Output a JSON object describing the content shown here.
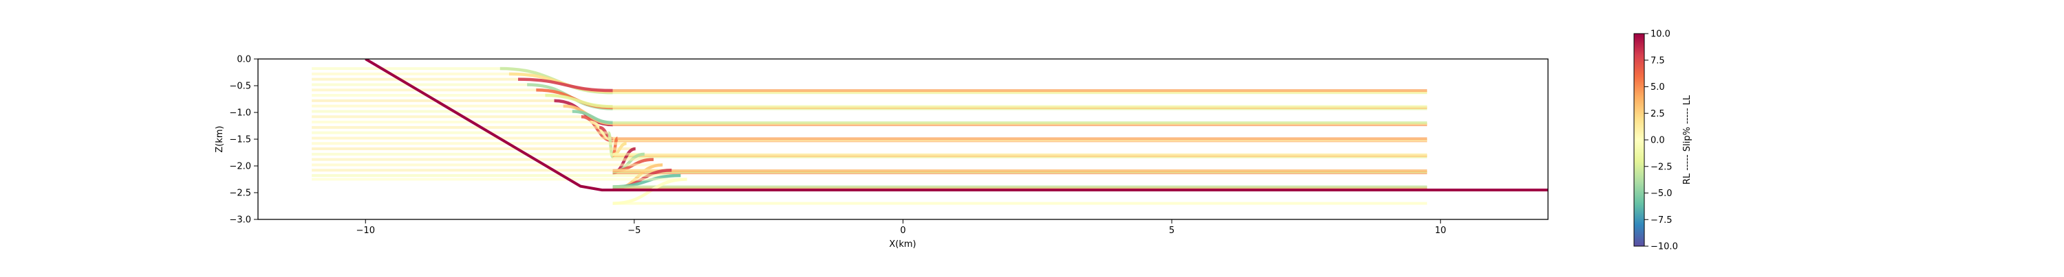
{
  "chart_data": {
    "type": "line",
    "xlabel": "X(km)",
    "ylabel": "Z(km)",
    "xlim": [
      -12,
      12
    ],
    "ylim": [
      -3.0,
      0.0
    ],
    "xticks": [
      -10,
      -5,
      0,
      5,
      10
    ],
    "xtick_labels": [
      "−10",
      "−5",
      "0",
      "5",
      "10"
    ],
    "yticks": [
      0.0,
      -0.5,
      -1.0,
      -1.5,
      -2.0,
      -2.5,
      -3.0
    ],
    "ytick_labels": [
      "0.0",
      "−0.5",
      "−1.0",
      "−1.5",
      "−2.0",
      "−2.5",
      "−3.0"
    ],
    "grid": false,
    "fault": {
      "x": [
        -10.0,
        -6.0,
        -5.6,
        12.0
      ],
      "y": [
        0.0,
        -2.38,
        -2.45,
        -2.45
      ],
      "color": "#9e0142"
    },
    "strata": {
      "x_start": -11.0,
      "x_end": 9.75,
      "depths": [
        -0.18,
        -0.28,
        -0.38,
        -0.48,
        -0.58,
        -0.68,
        -0.78,
        -0.88,
        -0.98,
        -1.08,
        -1.18,
        -1.28,
        -1.38,
        -1.48,
        -1.58,
        -1.68,
        -1.78,
        -1.88,
        -1.98,
        -2.08,
        -2.18,
        -2.25
      ],
      "slip_percent": [
        -3,
        2,
        8,
        -4,
        6,
        -2,
        9,
        3,
        -5,
        7,
        1,
        8,
        -3,
        6,
        2,
        9,
        -4,
        7,
        3,
        8,
        -6,
        0
      ]
    },
    "colorbar": {
      "label": "RL ----- Slip% ----- LL",
      "range": [
        -10.0,
        10.0
      ],
      "ticks": [
        10.0,
        7.5,
        5.0,
        2.5,
        0.0,
        -2.5,
        -5.0,
        -7.5,
        -10.0
      ],
      "tick_labels": [
        "10.0",
        "7.5",
        "5.0",
        "2.5",
        "0.0",
        "−2.5",
        "−5.0",
        "−7.5",
        "−10.0"
      ],
      "colormap": "Spectral_r"
    }
  }
}
